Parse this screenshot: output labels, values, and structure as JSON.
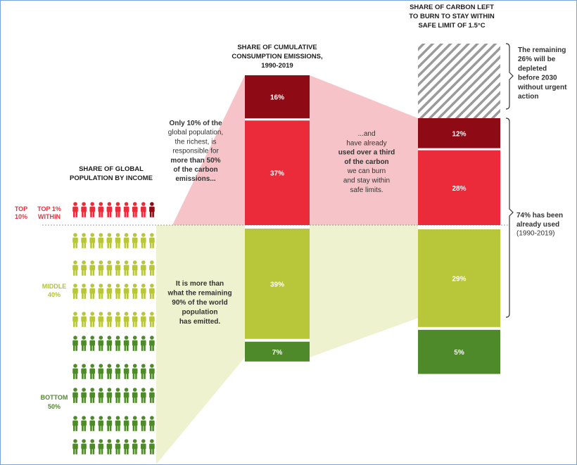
{
  "colors": {
    "top1": "#8e0a14",
    "top10": "#ec2b3a",
    "middle40": "#b8c73a",
    "bottom50": "#4f8a2a",
    "top_band": "#f6c4c8",
    "mid_band": "#eef2cf",
    "hatch": "#9a9a9a"
  },
  "population": {
    "title_line1": "SHARE OF GLOBAL",
    "title_line2": "POPULATION BY INCOME",
    "top_label_1": "TOP",
    "top_label_2": "10%",
    "top1_label_1": "TOP 1%",
    "top1_label_2": "WITHIN",
    "middle_label_1": "MIDDLE",
    "middle_label_2": "40%",
    "bottom_label_1": "BOTTOM",
    "bottom_label_2": "50%"
  },
  "cumulative": {
    "title_line1": "SHARE OF CUMULATIVE",
    "title_line2": "CONSUMPTION EMISSIONS,",
    "title_line3": "1990-2019"
  },
  "carbon_left": {
    "title_line1": "SHARE OF CARBON LEFT",
    "title_line2": "TO BURN TO STAY WITHIN",
    "title_line3": "SAFE LIMIT OF 1.5°C"
  },
  "annotations": {
    "top_note": [
      "Only 10% of the",
      "global population,",
      "the richest, is",
      "responsible for",
      "more than 50%",
      "of the carbon",
      "emissions..."
    ],
    "mid_note": [
      "It is more than",
      "what the remaining",
      "90% of the world",
      "population",
      "has emitted."
    ],
    "used_note": [
      "...and",
      "have already",
      "used over a third",
      "of the carbon",
      "we can burn",
      "and stay within",
      "safe limits."
    ],
    "remaining_note": [
      "The remaining",
      "26% will be",
      "depleted",
      "before 2030",
      "without urgent",
      "action"
    ],
    "used_total_note": [
      "74% has been",
      "already used",
      "(1990-2019)"
    ]
  },
  "chart_data": [
    {
      "type": "bar",
      "title": "SHARE OF CUMULATIVE CONSUMPTION EMISSIONS, 1990-2019",
      "categories": [
        "Top 1%",
        "Top 10% (excl. top 1%)",
        "Middle 40%",
        "Bottom 50%"
      ],
      "values": [
        16,
        37,
        39,
        7
      ],
      "labels": [
        "16%",
        "37%",
        "39%",
        "7%"
      ],
      "stacked": true
    },
    {
      "type": "bar",
      "title": "SHARE OF CARBON LEFT TO BURN TO STAY WITHIN SAFE LIMIT OF 1.5°C",
      "categories": [
        "Remaining",
        "Top 1%",
        "Top 10% (excl. top 1%)",
        "Middle 40%",
        "Bottom 50%"
      ],
      "values": [
        26,
        12,
        28,
        29,
        5
      ],
      "labels": [
        "",
        "12%",
        "28%",
        "29%",
        "5%"
      ],
      "stacked": true
    }
  ]
}
